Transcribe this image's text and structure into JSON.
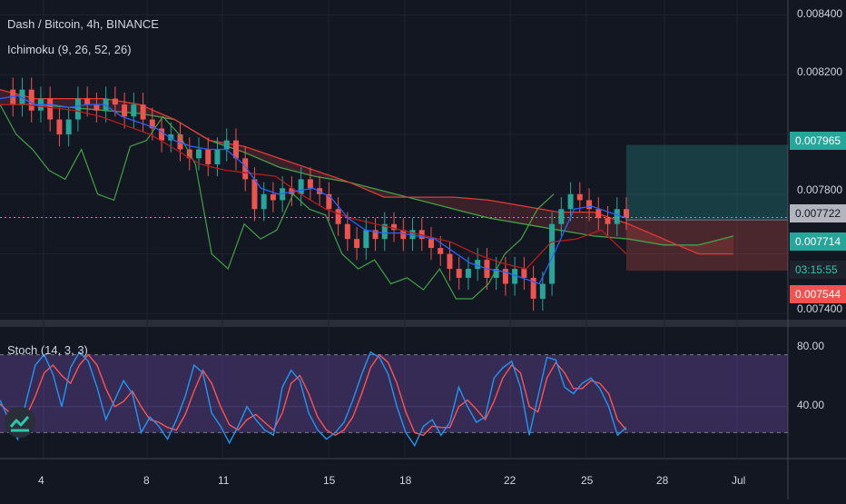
{
  "header": {
    "title": "Dash / Bitcoin, 4h, BINANCE",
    "indicator": "Ichimoku (9, 26, 52, 26)"
  },
  "stoch_panel": {
    "label": "Stoch (14, 3, 3)",
    "ticks": [
      "80.00",
      "40.00"
    ]
  },
  "price_axis": {
    "ticks": [
      "0.008400",
      "0.008200",
      "0.007800",
      "0.007400"
    ]
  },
  "price_tags": {
    "target": "0.007965",
    "last": "0.007722",
    "entry": "0.007714",
    "countdown": "03:15:55",
    "stop": "0.007544"
  },
  "colors": {
    "background": "#131722",
    "bull": "#26a69a",
    "bear": "#ef5350",
    "tenkan": "#2962ff",
    "kijun": "#b71c1c",
    "chikou": "#43a047",
    "stoch_k": "#2196f3",
    "stoch_d": "#ff5252",
    "stoch_band": "#7e57c2"
  },
  "chart_data": {
    "type": "candlestick",
    "x_ticks": [
      "4",
      "8",
      "11",
      "15",
      "18",
      "22",
      "25",
      "28",
      "Jul"
    ],
    "y_range": [
      0.00738,
      0.00845
    ],
    "close_path": [
      0.00815,
      0.0081,
      0.00815,
      0.00808,
      0.00812,
      0.00805,
      0.008,
      0.00805,
      0.00812,
      0.0081,
      0.00808,
      0.00812,
      0.0081,
      0.00806,
      0.0081,
      0.00805,
      0.00802,
      0.00798,
      0.008,
      0.00795,
      0.00792,
      0.00795,
      0.0079,
      0.00795,
      0.00798,
      0.00792,
      0.00785,
      0.00775,
      0.0078,
      0.00778,
      0.00782,
      0.0078,
      0.00785,
      0.00782,
      0.0078,
      0.00775,
      0.0077,
      0.00765,
      0.00762,
      0.00768,
      0.00765,
      0.0077,
      0.00768,
      0.00765,
      0.00768,
      0.00765,
      0.00762,
      0.0076,
      0.00755,
      0.00752,
      0.00755,
      0.00758,
      0.00752,
      0.00755,
      0.0075,
      0.00755,
      0.00752,
      0.00745,
      0.0075,
      0.0077,
      0.00775,
      0.0078,
      0.00778,
      0.00775,
      0.00772,
      0.0077,
      0.00775,
      0.00772
    ],
    "tenkan_path": [
      0.00812,
      0.00813,
      0.0081,
      0.0081,
      0.00809,
      0.0081,
      0.0081,
      0.00806,
      0.00804,
      0.00802,
      0.00798,
      0.00796,
      0.00795,
      0.00795,
      0.0079,
      0.00782,
      0.0078,
      0.00781,
      0.00782,
      0.00779,
      0.00772,
      0.00768,
      0.00767,
      0.00767,
      0.00766,
      0.00765,
      0.00761,
      0.00757,
      0.00755,
      0.00754,
      0.00752,
      0.0075,
      0.00762,
      0.00775,
      0.00776,
      0.00774,
      0.00772
    ],
    "kijun_path": [
      0.0081,
      0.0081,
      0.00809,
      0.00808,
      0.00806,
      0.00803,
      0.008,
      0.00795,
      0.0079,
      0.00788,
      0.00787,
      0.00786,
      0.0078,
      0.00775,
      0.00772,
      0.0077,
      0.00768,
      0.00766,
      0.00764,
      0.0076,
      0.00757,
      0.00755,
      0.00764,
      0.00765,
      0.00768,
      0.0076
    ],
    "chikou_path": [
      0.0081,
      0.008,
      0.00795,
      0.00788,
      0.00785,
      0.00795,
      0.0078,
      0.00778,
      0.00796,
      0.00798,
      0.00806,
      0.008,
      0.0079,
      0.0076,
      0.00755,
      0.0077,
      0.00765,
      0.00768,
      0.0078,
      0.00775,
      0.00773,
      0.0076,
      0.00755,
      0.00758,
      0.0075,
      0.00752,
      0.00748,
      0.00755,
      0.00745,
      0.00745,
      0.0075,
      0.0076,
      0.00765,
      0.00775,
      0.0078
    ],
    "span_a_path": [
      0.0081,
      0.0081,
      0.00809,
      0.00808,
      0.00807,
      0.00805,
      0.00798,
      0.00794,
      0.00789,
      0.00786,
      0.00784,
      0.00781,
      0.00778,
      0.00775,
      0.00772,
      0.0077,
      0.00768,
      0.00766,
      0.00765,
      0.00763,
      0.00763,
      0.00766
    ],
    "span_b_path": [
      0.00815,
      0.00812,
      0.00812,
      0.00812,
      0.0081,
      0.00805,
      0.00798,
      0.00796,
      0.00792,
      0.00788,
      0.00784,
      0.00779,
      0.00779,
      0.00779,
      0.00778,
      0.00776,
      0.00774,
      0.00774,
      0.0077,
      0.00765,
      0.0076,
      0.0076
    ],
    "position": {
      "target": 0.007965,
      "entry": 0.007714,
      "stop": 0.007544
    },
    "stoch_range": [
      0,
      100
    ],
    "stoch_bands": [
      80,
      20
    ],
    "stoch_k": [
      45,
      30,
      15,
      45,
      72,
      80,
      65,
      40,
      70,
      82,
      75,
      55,
      30,
      45,
      60,
      50,
      20,
      32,
      25,
      15,
      30,
      48,
      72,
      66,
      35,
      25,
      12,
      25,
      40,
      30,
      22,
      18,
      55,
      68,
      60,
      35,
      22,
      15,
      20,
      28,
      45,
      65,
      82,
      78,
      65,
      40,
      20,
      10,
      25,
      30,
      18,
      28,
      55,
      40,
      28,
      32,
      62,
      70,
      75,
      55,
      18,
      48,
      78,
      76,
      55,
      50,
      58,
      62,
      54,
      40,
      18,
      24
    ],
    "stoch_d": [
      42,
      36,
      28,
      33,
      48,
      66,
      72,
      64,
      58,
      72,
      80,
      72,
      54,
      40,
      44,
      52,
      40,
      30,
      28,
      24,
      22,
      34,
      52,
      68,
      58,
      40,
      26,
      22,
      30,
      34,
      28,
      22,
      35,
      58,
      64,
      50,
      32,
      22,
      18,
      22,
      32,
      50,
      70,
      80,
      74,
      58,
      36,
      20,
      18,
      25,
      24,
      24,
      40,
      45,
      38,
      30,
      44,
      62,
      72,
      66,
      40,
      36,
      62,
      74,
      66,
      54,
      54,
      60,
      58,
      50,
      30,
      22
    ]
  }
}
